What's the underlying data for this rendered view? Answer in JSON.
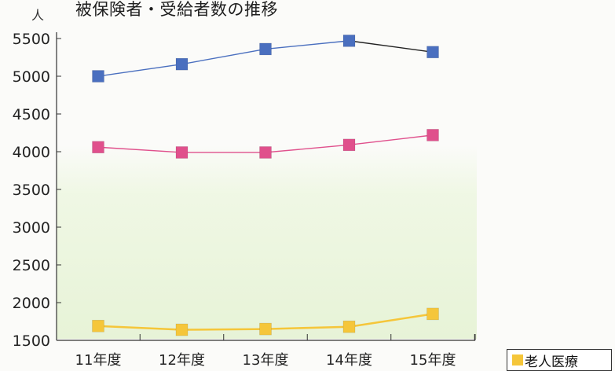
{
  "chart_data": {
    "type": "line",
    "title": "被保険者・受給者数の推移",
    "ylabel": "人",
    "xlabel": "",
    "categories": [
      "11年度",
      "12年度",
      "13年度",
      "14年度",
      "15年度"
    ],
    "yticks": [
      1500,
      2000,
      2500,
      3000,
      3500,
      4000,
      4500,
      5000,
      5500
    ],
    "ylim": [
      1500,
      5500
    ],
    "series": [
      {
        "values": [
          5000,
          5160,
          5360,
          5470,
          5320
        ],
        "color": "#4a6fbf",
        "line_color": "#4a6fbf",
        "line_color_after": "#222222"
      },
      {
        "values": [
          4060,
          3990,
          3990,
          4090,
          4220
        ],
        "color": "#e0508c",
        "line_color": "#e0508c"
      },
      {
        "name": "老人医療",
        "values": [
          1690,
          1640,
          1650,
          1680,
          1850
        ],
        "color": "#f5c63a",
        "line_color": "#f5c63a"
      }
    ],
    "legend": {
      "position": "bottom-right",
      "label": "老人医療",
      "color": "#f5c63a"
    },
    "grid": false,
    "background_tint": "#eef7e2"
  }
}
